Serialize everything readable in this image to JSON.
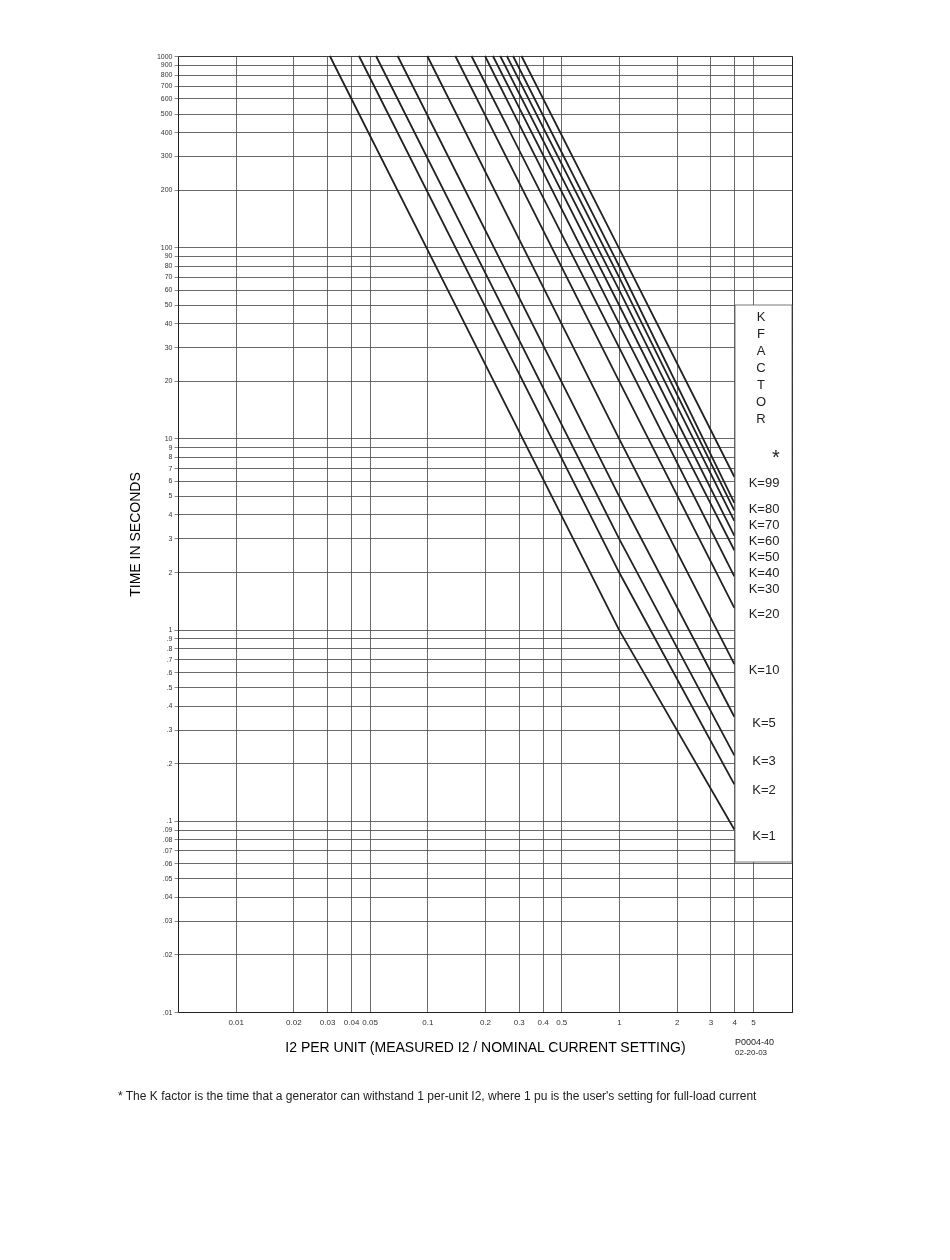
{
  "chart_data": {
    "type": "line",
    "xlabel": "I2 PER UNIT (MEASURED I2 / NOMINAL CURRENT SETTING)",
    "ylabel": "TIME IN SECONDS",
    "legend_title": "K FACTOR *",
    "log": "xy",
    "grid": true,
    "legend": false,
    "marker": "none",
    "line_style": "solid",
    "xlim": [
      0.005,
      8
    ],
    "ylim": [
      0.01,
      1000
    ],
    "xticks": [
      0.01,
      0.02,
      0.03,
      0.04,
      0.05,
      0.1,
      0.2,
      0.3,
      0.4,
      0.5,
      1,
      2,
      3,
      4,
      5
    ],
    "yticks": [
      {
        "value": 0.01,
        "label": ".01"
      },
      {
        "value": 0.02,
        "label": ".02"
      },
      {
        "value": 0.03,
        "label": ".03"
      },
      {
        "value": 0.04,
        "label": ".04"
      },
      {
        "value": 0.05,
        "label": ".05"
      },
      {
        "value": 0.06,
        "label": ".06"
      },
      {
        "value": 0.07,
        "label": ".07"
      },
      {
        "value": 0.08,
        "label": ".08"
      },
      {
        "value": 0.09,
        "label": ".09"
      },
      {
        "value": 0.1,
        "label": ".1"
      },
      {
        "value": 0.2,
        "label": ".2"
      },
      {
        "value": 0.3,
        "label": ".3"
      },
      {
        "value": 0.4,
        "label": ".4"
      },
      {
        "value": 0.5,
        "label": ".5"
      },
      {
        "value": 0.6,
        "label": ".6"
      },
      {
        "value": 0.7,
        "label": ".7"
      },
      {
        "value": 0.8,
        "label": ".8"
      },
      {
        "value": 0.9,
        "label": ".9"
      },
      1,
      2,
      3,
      4,
      5,
      6,
      7,
      8,
      9,
      10,
      20,
      30,
      40,
      50,
      60,
      70,
      80,
      90,
      100,
      200,
      300,
      400,
      500,
      600,
      700,
      800,
      900,
      1000
    ],
    "series": [
      {
        "name": "K=99",
        "color": "#222222",
        "x": [
          0.31,
          1,
          4
        ],
        "values": [
          1000,
          99,
          6.3
        ]
      },
      {
        "name": "K=80",
        "color": "#222222",
        "x": [
          0.28,
          1,
          4
        ],
        "values": [
          1000,
          80,
          4.6
        ]
      },
      {
        "name": "K=70",
        "color": "#222222",
        "x": [
          0.26,
          1,
          4
        ],
        "values": [
          1000,
          70,
          4.2
        ]
      },
      {
        "name": "K=60",
        "color": "#222222",
        "x": [
          0.24,
          1,
          4
        ],
        "values": [
          1000,
          60,
          3.7
        ]
      },
      {
        "name": "K=50",
        "color": "#222222",
        "x": [
          0.22,
          1,
          4
        ],
        "values": [
          1000,
          50,
          3.1
        ]
      },
      {
        "name": "K=40",
        "color": "#222222",
        "x": [
          0.2,
          1,
          4
        ],
        "values": [
          1000,
          40,
          2.6
        ]
      },
      {
        "name": "K=30",
        "color": "#222222",
        "x": [
          0.17,
          1,
          4
        ],
        "values": [
          1000,
          30,
          1.9
        ]
      },
      {
        "name": "K=20",
        "color": "#222222",
        "x": [
          0.14,
          1,
          4
        ],
        "values": [
          1000,
          20,
          1.3
        ]
      },
      {
        "name": "K=10",
        "color": "#222222",
        "x": [
          0.1,
          1,
          4
        ],
        "values": [
          1000,
          10,
          0.66
        ]
      },
      {
        "name": "K=5",
        "color": "#222222",
        "x": [
          0.07,
          1,
          4
        ],
        "values": [
          1000,
          5,
          0.35
        ]
      },
      {
        "name": "K=3",
        "color": "#222222",
        "x": [
          0.054,
          1,
          4
        ],
        "values": [
          1000,
          3,
          0.22
        ]
      },
      {
        "name": "K=2",
        "color": "#222222",
        "x": [
          0.044,
          1,
          4
        ],
        "values": [
          1000,
          2,
          0.155
        ]
      },
      {
        "name": "K=1",
        "color": "#222222",
        "x": [
          0.031,
          1,
          4
        ],
        "values": [
          1000,
          1,
          0.09
        ]
      }
    ],
    "annotations": [
      "P0004-40",
      "02-20-03",
      "*  The K factor is the time that a generator can withstand 1 per-unit I2, where 1 pu is the user's setting for full-load current"
    ]
  }
}
